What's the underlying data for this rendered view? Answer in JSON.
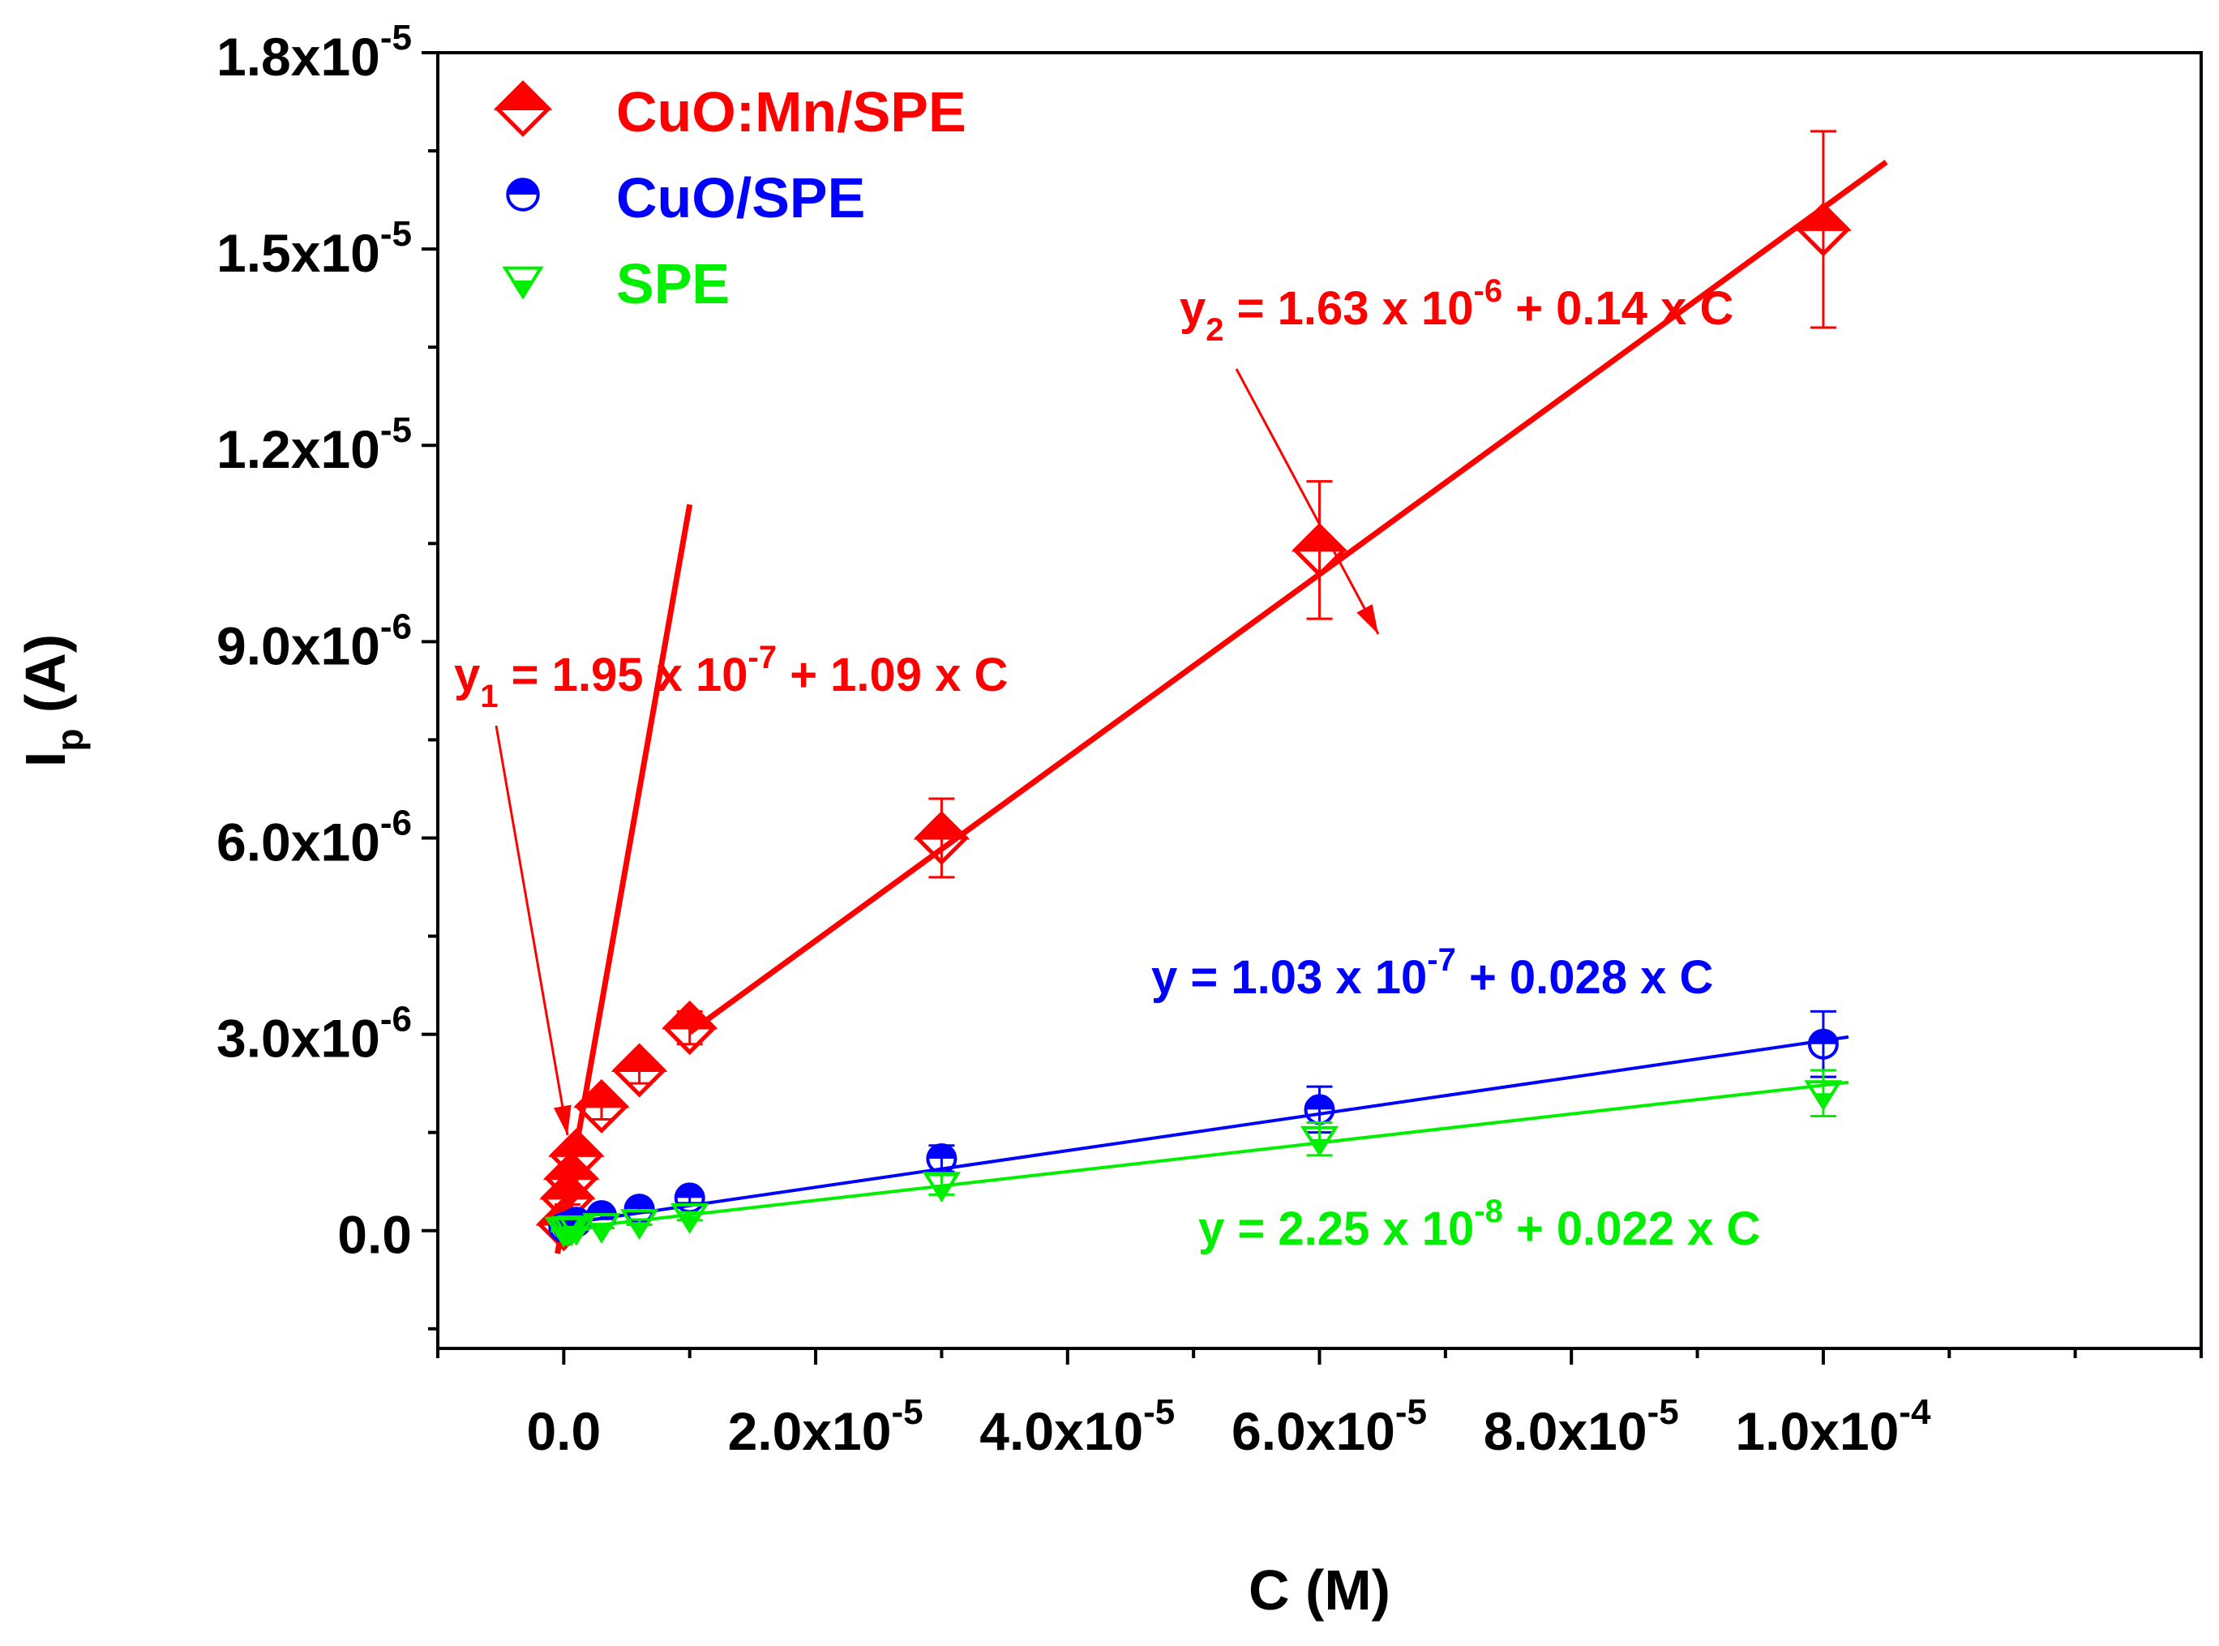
{
  "colors": {
    "cuo_mn_spe": "#ff0000",
    "cuo_spe": "#0000ff",
    "spe": "#00ee00",
    "axis": "#000000"
  },
  "chart_data": {
    "type": "scatter",
    "xlabel": "C (M)",
    "ylabel": {
      "main": "I",
      "sub": "p",
      "unit": "(A)"
    },
    "xlim": [
      -1e-05,
      0.00013
    ],
    "ylim": [
      -1.8e-06,
      1.8e-05
    ],
    "x_ticks": [
      {
        "value": 0,
        "base": "0.0",
        "exp": ""
      },
      {
        "value": 2e-05,
        "base": "2.0x10",
        "exp": "-5"
      },
      {
        "value": 4e-05,
        "base": "4.0x10",
        "exp": "-5"
      },
      {
        "value": 6e-05,
        "base": "6.0x10",
        "exp": "-5"
      },
      {
        "value": 8e-05,
        "base": "8.0x10",
        "exp": "-5"
      },
      {
        "value": 0.0001,
        "base": "1.0x10",
        "exp": "-4"
      }
    ],
    "x_minor_step": 1e-05,
    "y_ticks": [
      {
        "value": 0,
        "base": "0.0",
        "exp": ""
      },
      {
        "value": 3e-06,
        "base": "3.0x10",
        "exp": "-6"
      },
      {
        "value": 6e-06,
        "base": "6.0x10",
        "exp": "-6"
      },
      {
        "value": 9e-06,
        "base": "9.0x10",
        "exp": "-6"
      },
      {
        "value": 1.2e-05,
        "base": "1.2x10",
        "exp": "-5"
      },
      {
        "value": 1.5e-05,
        "base": "1.5x10",
        "exp": "-5"
      },
      {
        "value": 1.8e-05,
        "base": "1.8x10",
        "exp": "-5"
      }
    ],
    "y_minor_step": 1.5e-06,
    "legend_position": "top-left",
    "series": [
      {
        "name": "CuO:Mn/SPE",
        "color_key": "cuo_mn_spe",
        "marker": "half-filled-diamond",
        "x": [
          0,
          3e-07,
          6e-07,
          1e-06,
          3e-06,
          6e-06,
          1e-05,
          3e-05,
          6e-05,
          0.0001
        ],
        "y": [
          1e-07,
          5e-07,
          8e-07,
          1.15e-06,
          1.9e-06,
          2.45e-06,
          3.1e-06,
          6e-06,
          1.04e-05,
          1.53e-05
        ],
        "err": [
          1e-07,
          1e-07,
          1.5e-07,
          2e-07,
          2e-07,
          2e-07,
          2.5e-07,
          6e-07,
          1.05e-06,
          1.5e-06
        ]
      },
      {
        "name": "CuO/SPE",
        "color_key": "cuo_spe",
        "marker": "half-filled-circle",
        "x": [
          0,
          3e-07,
          6e-07,
          1e-06,
          3e-06,
          6e-06,
          1e-05,
          3e-05,
          6e-05,
          0.0001
        ],
        "y": [
          5e-08,
          7e-08,
          9e-08,
          1.3e-07,
          2.3e-07,
          3.3e-07,
          5e-07,
          1.1e-06,
          1.85e-06,
          2.85e-06
        ],
        "err": [
          3e-08,
          3e-08,
          3e-08,
          3e-08,
          5e-08,
          5e-08,
          8e-08,
          2e-07,
          3.5e-07,
          5e-07
        ]
      },
      {
        "name": "SPE",
        "color_key": "spe",
        "marker": "half-filled-triangle-down",
        "x": [
          0,
          3e-07,
          6e-07,
          1e-06,
          3e-06,
          6e-06,
          1e-05,
          3e-05,
          6e-05,
          0.0001
        ],
        "y": [
          1e-08,
          1.5e-08,
          2.5e-08,
          3.5e-08,
          7e-08,
          1.3e-07,
          2.2e-07,
          7e-07,
          1.4e-06,
          2.1e-06
        ],
        "err": [
          2e-08,
          2e-08,
          2e-08,
          2e-08,
          3e-08,
          4e-08,
          6e-08,
          1.5e-07,
          2.5e-07,
          3.5e-07
        ]
      }
    ],
    "fits": [
      {
        "series": "CuO:Mn/SPE",
        "intercept": 1.95e-07,
        "slope": 1.09,
        "x_range": [
          -5e-07,
          1e-05
        ]
      },
      {
        "series": "CuO:Mn/SPE",
        "intercept": 1.63e-06,
        "slope": 0.14,
        "x_range": [
          1e-05,
          0.000105
        ]
      },
      {
        "series": "CuO/SPE",
        "intercept": 1.03e-07,
        "slope": 0.028,
        "x_range": [
          0,
          0.000102
        ]
      },
      {
        "series": "SPE",
        "intercept": 2.25e-08,
        "slope": 0.022,
        "x_range": [
          0,
          0.000102
        ]
      }
    ],
    "annotations": [
      {
        "id": "y1",
        "color_key": "cuo_mn_spe",
        "name": "y",
        "sub": "1",
        "text1": " = 1.95 x 10",
        "exp": "-7",
        "text2": " + 1.09 x C"
      },
      {
        "id": "y2",
        "color_key": "cuo_mn_spe",
        "name": "y",
        "sub": "2",
        "text1": " = 1.63 x 10",
        "exp": "-6",
        "text2": " + 0.14 x C"
      },
      {
        "id": "blue",
        "color_key": "cuo_spe",
        "name": "y",
        "sub": "",
        "text1": " = 1.03 x 10",
        "exp": "-7",
        "text2": " + 0.028 x C"
      },
      {
        "id": "green",
        "color_key": "spe",
        "name": "y",
        "sub": "",
        "text1": " = 2.25 x 10",
        "exp": "-8",
        "text2": " + 0.022 x C"
      }
    ]
  }
}
